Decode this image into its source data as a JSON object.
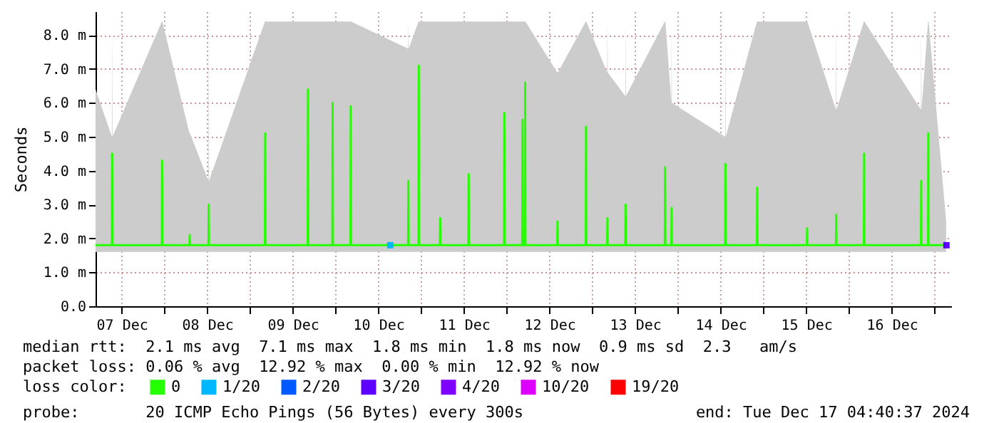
{
  "chart_data": {
    "type": "line",
    "ylabel": "Seconds",
    "legend_title": "loss color:",
    "legend": "bottom",
    "grid": true,
    "xlim": [
      "2024-12-07T04:40",
      "2024-12-17T04:40"
    ],
    "xticks": [
      {
        "value": "2024-12-07T12:00",
        "label": "07 Dec"
      },
      {
        "value": "2024-12-08T00:00",
        "label": null
      },
      {
        "value": "2024-12-08T12:00",
        "label": "08 Dec"
      },
      {
        "value": "2024-12-09T00:00",
        "label": null
      },
      {
        "value": "2024-12-09T12:00",
        "label": "09 Dec"
      },
      {
        "value": "2024-12-10T00:00",
        "label": null
      },
      {
        "value": "2024-12-10T12:00",
        "label": "10 Dec"
      },
      {
        "value": "2024-12-11T00:00",
        "label": null
      },
      {
        "value": "2024-12-11T12:00",
        "label": "11 Dec"
      },
      {
        "value": "2024-12-12T00:00",
        "label": null
      },
      {
        "value": "2024-12-12T12:00",
        "label": "12 Dec"
      },
      {
        "value": "2024-12-13T00:00",
        "label": null
      },
      {
        "value": "2024-12-13T12:00",
        "label": "13 Dec"
      },
      {
        "value": "2024-12-14T00:00",
        "label": null
      },
      {
        "value": "2024-12-14T12:00",
        "label": "14 Dec"
      },
      {
        "value": "2024-12-15T00:00",
        "label": null
      },
      {
        "value": "2024-12-15T12:00",
        "label": "15 Dec"
      },
      {
        "value": "2024-12-16T00:00",
        "label": null
      },
      {
        "value": "2024-12-16T12:00",
        "label": "16 Dec"
      },
      {
        "value": "2024-12-17T00:00",
        "label": null
      }
    ],
    "ylim": [
      0,
      8.7
    ],
    "yticks": [
      {
        "value": 0,
        "label": "0.0"
      },
      {
        "value": 1,
        "label": "1.0 m"
      },
      {
        "value": 2,
        "label": "2.0 m"
      },
      {
        "value": 3,
        "label": "3.0 m"
      },
      {
        "value": 4,
        "label": "4.0 m"
      },
      {
        "value": 5,
        "label": "5.0 m"
      },
      {
        "value": 6,
        "label": "6.0 m"
      },
      {
        "value": 7,
        "label": "7.0 m"
      },
      {
        "value": 8,
        "label": "8.0 m"
      }
    ],
    "annotations": [
      "median rtt:  2.1 ms avg  7.1 ms max  1.8 ms min  1.8 ms now  0.9 ms sd  2.3   am/s",
      "packet loss: 0.06 % avg  12.92 % max  0.00 % min  12.92 % now",
      "probe:       20 ICMP Echo Pings (56 Bytes) every 300s",
      "end: Tue Dec 17 04:40:37 2024"
    ],
    "series": [
      {
        "name": "0",
        "marker": "none",
        "color": "#26ff00",
        "x": [
          "2024-12-07T04:40",
          "2024-12-07T09:15",
          "2024-12-07T09:20",
          "2024-12-07T09:25",
          "2024-12-07T23:15",
          "2024-12-07T23:20",
          "2024-12-07T23:25",
          "2024-12-08T07:00",
          "2024-12-08T07:05",
          "2024-12-08T07:10",
          "2024-12-08T12:20",
          "2024-12-08T12:25",
          "2024-12-08T12:30",
          "2024-12-09T04:10",
          "2024-12-09T04:15",
          "2024-12-09T04:20",
          "2024-12-09T16:10",
          "2024-12-09T16:15",
          "2024-12-09T16:20",
          "2024-12-09T23:05",
          "2024-12-09T23:10",
          "2024-12-09T23:15",
          "2024-12-10T04:10",
          "2024-12-10T04:15",
          "2024-12-10T04:20",
          "2024-12-10T20:20",
          "2024-12-10T20:25",
          "2024-12-10T20:30",
          "2024-12-10T23:15",
          "2024-12-10T23:20",
          "2024-12-10T23:25",
          "2024-12-11T05:15",
          "2024-12-11T05:20",
          "2024-12-11T05:25",
          "2024-12-11T13:15",
          "2024-12-11T13:20",
          "2024-12-11T13:25",
          "2024-12-11T23:15",
          "2024-12-11T23:20",
          "2024-12-11T23:25",
          "2024-12-12T04:20",
          "2024-12-12T04:25",
          "2024-12-12T04:30",
          "2024-12-12T05:05",
          "2024-12-12T05:10",
          "2024-12-12T05:15",
          "2024-12-12T14:10",
          "2024-12-12T14:15",
          "2024-12-12T14:20",
          "2024-12-12T22:10",
          "2024-12-12T22:15",
          "2024-12-12T22:20",
          "2024-12-13T04:10",
          "2024-12-13T04:15",
          "2024-12-13T04:20",
          "2024-12-13T09:15",
          "2024-12-13T09:20",
          "2024-12-13T09:25",
          "2024-12-13T20:20",
          "2024-12-13T20:25",
          "2024-12-13T20:30",
          "2024-12-13T22:10",
          "2024-12-13T22:15",
          "2024-12-13T22:20",
          "2024-12-14T13:15",
          "2024-12-14T13:20",
          "2024-12-14T13:25",
          "2024-12-14T22:10",
          "2024-12-14T22:15",
          "2024-12-14T22:20",
          "2024-12-15T12:10",
          "2024-12-15T12:15",
          "2024-12-15T12:20",
          "2024-12-15T20:20",
          "2024-12-15T20:25",
          "2024-12-15T20:30",
          "2024-12-16T04:10",
          "2024-12-16T04:15",
          "2024-12-16T04:20",
          "2024-12-16T20:10",
          "2024-12-16T20:15",
          "2024-12-16T20:20",
          "2024-12-16T22:10",
          "2024-12-16T22:15",
          "2024-12-16T22:20",
          "2024-12-17T03:15"
        ],
        "values": [
          1.8,
          1.8,
          4.5,
          1.8,
          1.8,
          4.3,
          1.8,
          1.8,
          2.1,
          1.8,
          1.8,
          3.0,
          1.8,
          1.8,
          5.1,
          1.8,
          1.8,
          6.4,
          1.8,
          1.8,
          6.0,
          1.8,
          1.8,
          5.9,
          1.8,
          1.8,
          3.7,
          1.8,
          1.8,
          7.1,
          1.8,
          1.8,
          2.6,
          1.8,
          1.8,
          3.9,
          1.8,
          1.8,
          5.7,
          1.8,
          1.8,
          5.5,
          1.8,
          1.8,
          6.6,
          1.8,
          1.8,
          2.5,
          1.8,
          1.8,
          5.3,
          1.8,
          1.8,
          2.6,
          1.8,
          1.8,
          3.0,
          1.8,
          1.8,
          4.1,
          1.8,
          1.8,
          2.9,
          1.8,
          1.8,
          4.2,
          1.8,
          1.8,
          3.5,
          1.8,
          1.8,
          2.3,
          1.8,
          1.8,
          2.7,
          1.8,
          1.8,
          4.5,
          1.8,
          1.8,
          3.7,
          1.8,
          1.8,
          5.1,
          1.8,
          1.8
        ],
        "upper": [
          6.4,
          5.0,
          8.4,
          5.0,
          8.4,
          8.4,
          8.4,
          5.1,
          5.1,
          5.1,
          3.7,
          8.4,
          3.7,
          8.4,
          8.4,
          8.4,
          8.4,
          8.4,
          8.4,
          8.4,
          8.4,
          8.4,
          8.4,
          8.4,
          8.4,
          7.6,
          8.4,
          7.6,
          8.4,
          8.4,
          8.4,
          8.4,
          8.4,
          8.4,
          8.4,
          8.4,
          8.4,
          8.4,
          8.4,
          8.4,
          8.4,
          8.4,
          8.4,
          8.4,
          8.4,
          8.4,
          6.9,
          6.9,
          6.9,
          8.4,
          8.4,
          8.4,
          6.9,
          8.4,
          6.9,
          6.2,
          8.4,
          6.2,
          8.4,
          8.4,
          8.4,
          6.0,
          8.4,
          6.0,
          5.0,
          8.4,
          5.0,
          8.4,
          8.4,
          8.4,
          8.4,
          8.4,
          8.4,
          5.8,
          8.4,
          5.8,
          8.4,
          8.4,
          8.4,
          5.8,
          8.4,
          5.8,
          8.4,
          8.4,
          8.4,
          2.5
        ],
        "lower": [
          1.6,
          1.6,
          1.6,
          1.6,
          1.6,
          1.6,
          1.6,
          1.6,
          1.6,
          1.6,
          1.6,
          1.6,
          1.6,
          1.6,
          1.6,
          1.6,
          1.6,
          1.6,
          1.6,
          1.6,
          1.6,
          1.6,
          1.6,
          1.6,
          1.6,
          1.6,
          1.6,
          1.6,
          1.6,
          1.6,
          1.6,
          1.6,
          1.6,
          1.6,
          1.6,
          1.6,
          1.6,
          1.6,
          1.6,
          1.6,
          1.6,
          1.6,
          1.6,
          1.6,
          1.6,
          1.6,
          1.6,
          1.6,
          1.6,
          1.6,
          1.6,
          1.6,
          1.6,
          1.6,
          1.6,
          1.6,
          1.6,
          1.6,
          1.6,
          1.6,
          1.6,
          1.6,
          1.6,
          1.6,
          1.6,
          1.6,
          1.6,
          1.6,
          1.6,
          1.6,
          1.6,
          1.6,
          1.6,
          1.6,
          1.6,
          1.6,
          1.6,
          1.6,
          1.6,
          1.6,
          1.6,
          1.6,
          1.6,
          1.6,
          1.6,
          1.6
        ]
      },
      {
        "name": "1/20",
        "type": "scatter",
        "marker": "square",
        "color": "#00b8ff",
        "x": [
          "2024-12-10T15:20"
        ],
        "values": [
          1.8
        ]
      },
      {
        "name": "2/20",
        "type": "scatter",
        "marker": "square",
        "color": "#0059ff"
      },
      {
        "name": "3/20",
        "type": "scatter",
        "marker": "square",
        "color": "#5e00ff",
        "x": [
          "2024-12-17T03:20"
        ],
        "values": [
          1.8
        ]
      },
      {
        "name": "4/20",
        "type": "scatter",
        "marker": "square",
        "color": "#7e00ff"
      },
      {
        "name": "10/20",
        "type": "scatter",
        "marker": "square",
        "color": "#dd00ff"
      },
      {
        "name": "19/20",
        "type": "scatter",
        "marker": "square",
        "color": "#ff0000"
      }
    ]
  }
}
